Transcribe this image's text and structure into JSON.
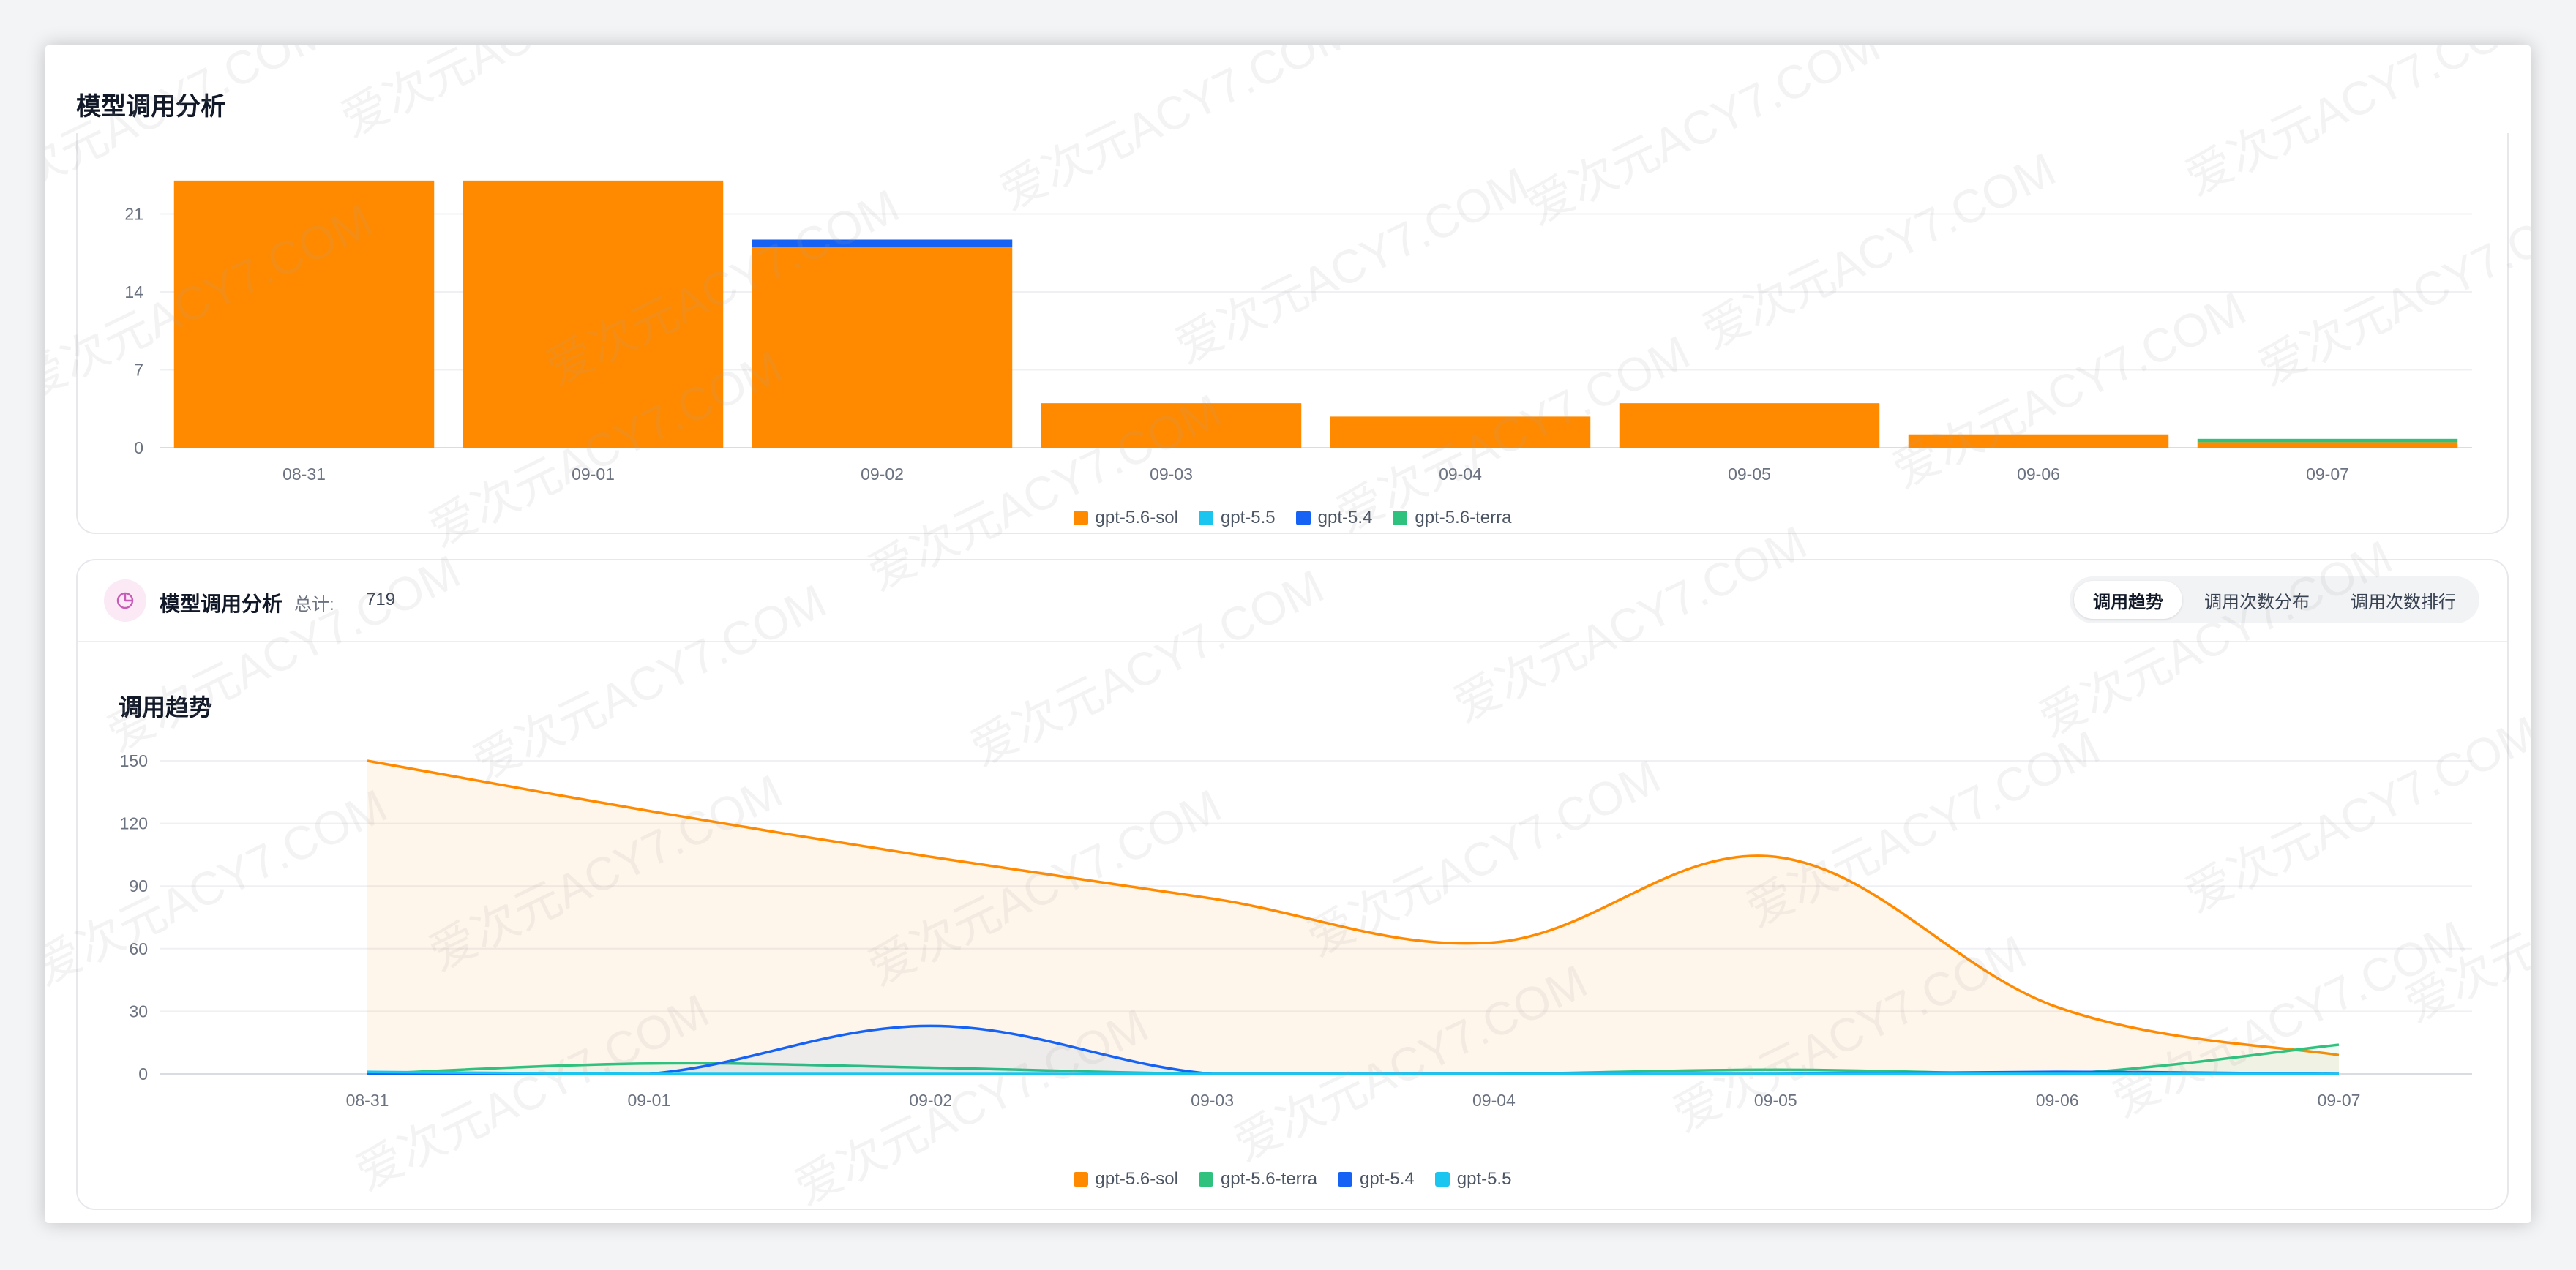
{
  "page": {
    "title": "模型调用分析"
  },
  "colors": {
    "gpt-5.6-sol": "#ff8a00",
    "gpt-5.5": "#1ac6f0",
    "gpt-5.4": "#1562f5",
    "gpt-5.6-terra": "#2fc27e"
  },
  "bar_legend": [
    {
      "name": "gpt-5.6-sol",
      "color": "#ff8a00"
    },
    {
      "name": "gpt-5.5",
      "color": "#1ac6f0"
    },
    {
      "name": "gpt-5.4",
      "color": "#1562f5"
    },
    {
      "name": "gpt-5.6-terra",
      "color": "#2fc27e"
    }
  ],
  "line_legend": [
    {
      "name": "gpt-5.6-sol",
      "color": "#ff8a00"
    },
    {
      "name": "gpt-5.6-terra",
      "color": "#2fc27e"
    },
    {
      "name": "gpt-5.4",
      "color": "#1562f5"
    },
    {
      "name": "gpt-5.5",
      "color": "#1ac6f0"
    }
  ],
  "analysis_card": {
    "icon": "pie-chart-icon",
    "title": "模型调用分析",
    "total_label": "总计:",
    "total_value": "719",
    "tabs": [
      "调用趋势",
      "调用次数分布",
      "调用次数排行"
    ],
    "active_tab": "调用趋势",
    "section_title": "调用趋势"
  },
  "watermark": "爱次元ACY7.COM",
  "chart_data": [
    {
      "type": "bar",
      "stacked": true,
      "categories": [
        "08-31",
        "09-01",
        "09-02",
        "09-03",
        "09-04",
        "09-05",
        "09-06",
        "09-07"
      ],
      "series": [
        {
          "name": "gpt-5.6-sol",
          "values": [
            24,
            24,
            18,
            4,
            2.8,
            4,
            1.2,
            0.5
          ]
        },
        {
          "name": "gpt-5.5",
          "values": [
            0,
            0,
            0,
            0,
            0,
            0,
            0,
            0
          ]
        },
        {
          "name": "gpt-5.4",
          "values": [
            0,
            0,
            0.7,
            0,
            0,
            0,
            0,
            0
          ]
        },
        {
          "name": "gpt-5.6-terra",
          "values": [
            0,
            0,
            0,
            0,
            0,
            0,
            0,
            0.3
          ]
        }
      ],
      "y_ticks": [
        0,
        7,
        14,
        21
      ],
      "ylim": [
        0,
        28
      ],
      "grid": true,
      "legend": "bottom-center"
    },
    {
      "type": "area",
      "smooth": true,
      "categories": [
        "08-31",
        "09-01",
        "09-02",
        "09-03",
        "09-04",
        "09-05",
        "09-06",
        "09-07"
      ],
      "series": [
        {
          "name": "gpt-5.6-sol",
          "values": [
            150,
            126,
            104,
            84,
            63,
            104,
            32,
            9
          ]
        },
        {
          "name": "gpt-5.6-terra",
          "values": [
            0,
            5,
            3,
            0,
            0,
            2,
            0,
            14
          ]
        },
        {
          "name": "gpt-5.4",
          "values": [
            0,
            0,
            23,
            0,
            0,
            0,
            1,
            0
          ]
        },
        {
          "name": "gpt-5.5",
          "values": [
            1,
            0,
            0,
            0,
            0,
            0,
            0,
            0
          ]
        }
      ],
      "y_ticks": [
        0,
        30,
        60,
        90,
        120,
        150
      ],
      "ylim": [
        0,
        150
      ],
      "grid": true,
      "legend": "bottom-center"
    }
  ]
}
